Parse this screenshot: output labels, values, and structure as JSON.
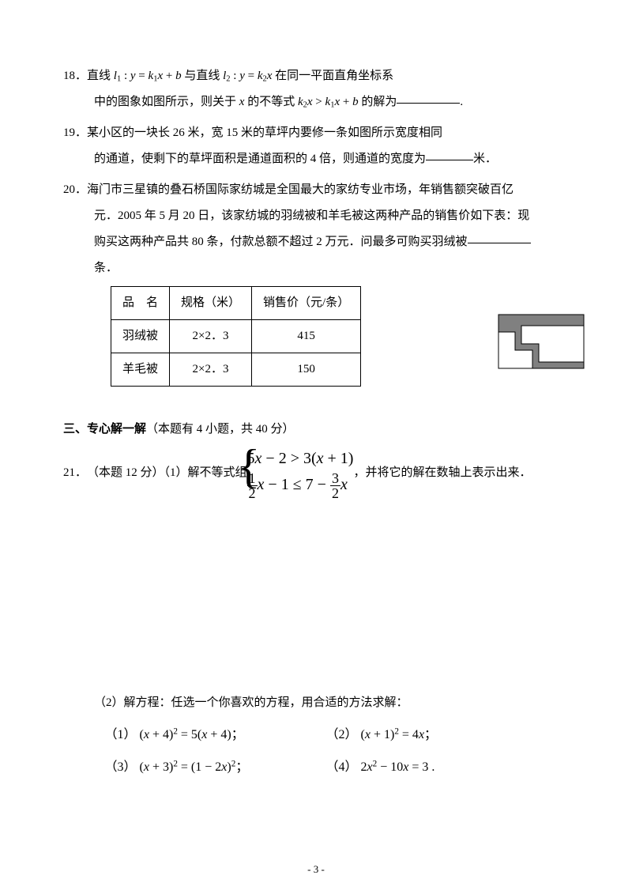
{
  "q18": {
    "num": "18．",
    "line1_a": "直线 ",
    "math1_html": "<span class='math'>l</span><sub>1</sub> : <span class='math'>y</span> = <span class='math'>k</span><sub>1</sub><span class='math'>x</span> + <span class='math'>b</span>",
    "line1_b": " 与直线 ",
    "math2_html": "<span class='math'>l</span><sub>2</sub> : <span class='math'>y</span> = <span class='math'>k</span><sub>2</sub><span class='math'>x</span>",
    "line1_c": " 在同一平面直角坐标系",
    "line2_a": "中的图象如图所示，则关于 ",
    "math3_html": "<span class='math'>x</span>",
    "line2_b": " 的不等式 ",
    "math4_html": "<span class='math'>k</span><sub>2</sub><span class='math'>x</span> &gt; <span class='math'>k</span><sub>1</sub><span class='math'>x</span> + <span class='math'>b</span>",
    "line2_c": " 的解为",
    "line2_d": "."
  },
  "q19": {
    "num": "19．",
    "line1": "某小区的一块长 26 米，宽 15 米的草坪内要修一条如图所示宽度相同",
    "line2_a": "的通道，使剩下的草坪面积是通道面积的 4 倍，则通道的宽度为",
    "line2_b": "米．"
  },
  "q20": {
    "num": "20．",
    "line1": "海门市三星镇的叠石桥国际家纺城是全国最大的家纺专业市场，年销售额突破百亿",
    "line2": "元．2005 年 5 月 20 日，该家纺城的羽绒被和羊毛被这两种产品的销售价如下表：现",
    "line3_a": "购买这两种产品共 80 条，付款总额不超过 2 万元．问最多可购买羽绒被",
    "line4": "条．",
    "table": {
      "headers": [
        "品　名",
        "规格（米）",
        "销售价（元/条）"
      ],
      "rows": [
        [
          "羽绒被",
          "2×2．3",
          "415"
        ],
        [
          "羊毛被",
          "2×2．3",
          "150"
        ]
      ],
      "border_color": "#000000",
      "cell_padding": "4px 14px"
    },
    "stair_colors": {
      "fill": "#808080",
      "bg": "#ffffff",
      "stroke": "#000000"
    }
  },
  "section3": {
    "bold": "三、专心解一解",
    "rest": "（本题有 4 小题，共 40 分）"
  },
  "q21": {
    "num": "21．",
    "pre": "（本题 12 分）（1）解不等式组 ",
    "post": "，并将它的解在数轴上表示出来．",
    "system": {
      "row1_html": "5<span class='math'>x</span> − 2 &gt; 3(<span class='math'>x</span> + 1)",
      "row2_frac1_n": "1",
      "row2_frac1_d": "2",
      "row2_mid_html": "<span class='math'>x</span> − 1 ≤ 7 − ",
      "row2_frac2_n": "3",
      "row2_frac2_d": "2",
      "row2_end_html": "<span class='math'>x</span>"
    },
    "part2_intro": "（2）解方程：任选一个你喜欢的方程，用合适的方法求解：",
    "eqs": [
      {
        "label": "（1）",
        "math_html": "(<span class='math'>x</span> + 4)<sup>2</sup> = 5(<span class='math'>x</span> + 4)；"
      },
      {
        "label": "（2）",
        "math_html": "(<span class='math'>x</span> + 1)<sup>2</sup> = 4<span class='math'>x</span>；"
      },
      {
        "label": "（3）",
        "math_html": "(<span class='math'>x</span> + 3)<sup>2</sup> = (1 − 2<span class='math'>x</span>)<sup>2</sup>；"
      },
      {
        "label": "（4）",
        "math_html": "2<span class='math'>x</span><sup>2</sup> − 10<span class='math'>x</span> = 3 ."
      }
    ]
  },
  "page_number": "- 3 -"
}
